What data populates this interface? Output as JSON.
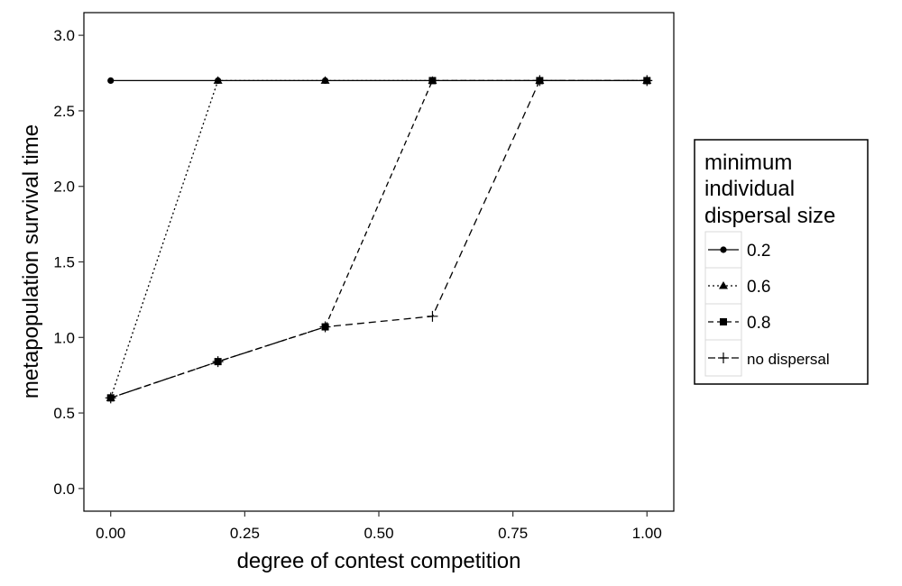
{
  "chart_data": {
    "type": "line",
    "title": "",
    "xlabel": "degree of contest competition",
    "ylabel": "metapopulation survival time",
    "xlim": [
      -0.05,
      1.05
    ],
    "ylim": [
      -0.15,
      3.15
    ],
    "xticks": [
      0,
      0.25,
      0.5,
      0.75,
      1.0
    ],
    "xtick_labels": [
      "0.00",
      "0.25",
      "0.50",
      "0.75",
      "1.00"
    ],
    "yticks": [
      0,
      0.5,
      1.0,
      1.5,
      2.0,
      2.5,
      3.0
    ],
    "ytick_labels": [
      "0.0",
      "0.5",
      "1.0",
      "1.5",
      "2.0",
      "2.5",
      "3.0"
    ],
    "grid": false,
    "legend": {
      "title_lines": [
        "minimum",
        "individual",
        "dispersal size"
      ],
      "placement": "right"
    },
    "series": [
      {
        "name": "0.2",
        "marker": "circle",
        "dash": "solid",
        "x": [
          0,
          0.2,
          0.4,
          0.6,
          0.8,
          1.0
        ],
        "y": [
          2.7,
          2.7,
          2.7,
          2.7,
          2.7,
          2.7
        ]
      },
      {
        "name": "0.6",
        "marker": "triangle",
        "dash": "dotted",
        "x": [
          0,
          0.2,
          0.4,
          0.6,
          0.8,
          1.0
        ],
        "y": [
          0.6,
          2.7,
          2.7,
          2.7,
          2.7,
          2.7
        ]
      },
      {
        "name": "0.8",
        "marker": "square",
        "dash": "dashed",
        "x": [
          0,
          0.2,
          0.4,
          0.6,
          0.8,
          1.0
        ],
        "y": [
          0.6,
          0.84,
          1.07,
          2.7,
          2.7,
          2.7
        ]
      },
      {
        "name": "no dispersal",
        "marker": "plus",
        "dash": "longdash",
        "x": [
          0,
          0.2,
          0.4,
          0.6,
          0.8,
          1.0
        ],
        "y": [
          0.6,
          0.84,
          1.07,
          1.14,
          2.7,
          2.7
        ]
      }
    ]
  }
}
